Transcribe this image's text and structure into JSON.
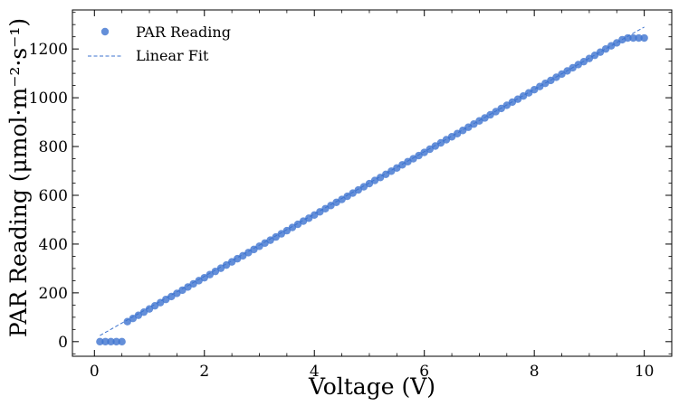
{
  "chart_data": {
    "type": "scatter",
    "xlabel": "Voltage (V)",
    "ylabel": "PAR Reading (μmol·m⁻²·s⁻¹)",
    "xlim": [
      -0.4,
      10.5
    ],
    "ylim": [
      -60,
      1360
    ],
    "x_ticks": [
      0,
      2,
      4,
      6,
      8,
      10
    ],
    "y_ticks": [
      0,
      200,
      400,
      600,
      800,
      1000,
      1200
    ],
    "grid": false,
    "legend_position": "top-left",
    "colors": {
      "points": "#3d73cf",
      "fit": "#3d73cf"
    },
    "series": [
      {
        "name": "PAR Reading",
        "kind": "scatter",
        "x": [
          0.1,
          0.2,
          0.3,
          0.4,
          0.5,
          0.6,
          0.7,
          0.8,
          0.9,
          1.0,
          1.1,
          1.2,
          1.3,
          1.4,
          1.5,
          1.6,
          1.7,
          1.8,
          1.9,
          2.0,
          2.1,
          2.2,
          2.3,
          2.4,
          2.5,
          2.6,
          2.7,
          2.8,
          2.9,
          3.0,
          3.1,
          3.2,
          3.3,
          3.4,
          3.5,
          3.6,
          3.7,
          3.8,
          3.9,
          4.0,
          4.1,
          4.2,
          4.3,
          4.4,
          4.5,
          4.6,
          4.7,
          4.8,
          4.9,
          5.0,
          5.1,
          5.2,
          5.3,
          5.4,
          5.5,
          5.6,
          5.7,
          5.8,
          5.9,
          6.0,
          6.1,
          6.2,
          6.3,
          6.4,
          6.5,
          6.6,
          6.7,
          6.8,
          6.9,
          7.0,
          7.1,
          7.2,
          7.3,
          7.4,
          7.5,
          7.6,
          7.7,
          7.8,
          7.9,
          8.0,
          8.1,
          8.2,
          8.3,
          8.4,
          8.5,
          8.6,
          8.7,
          8.8,
          8.9,
          9.0,
          9.1,
          9.2,
          9.3,
          9.4,
          9.5,
          9.6,
          9.7,
          9.8,
          9.9,
          10.0
        ],
        "y": [
          0,
          0,
          0,
          0,
          0,
          82,
          95,
          108,
          121,
          134,
          147,
          160,
          173,
          185,
          198,
          211,
          224,
          237,
          250,
          262,
          275,
          288,
          301,
          314,
          327,
          340,
          352,
          365,
          378,
          391,
          404,
          416,
          429,
          442,
          455,
          468,
          481,
          494,
          506,
          519,
          532,
          545,
          558,
          571,
          583,
          596,
          609,
          622,
          635,
          648,
          661,
          673,
          686,
          699,
          712,
          725,
          738,
          750,
          763,
          776,
          789,
          802,
          815,
          828,
          840,
          853,
          866,
          879,
          892,
          905,
          917,
          930,
          943,
          956,
          969,
          982,
          994,
          1007,
          1020,
          1033,
          1046,
          1059,
          1071,
          1084,
          1097,
          1110,
          1123,
          1136,
          1148,
          1161,
          1174,
          1187,
          1200,
          1213,
          1225,
          1238,
          1245,
          1245,
          1245,
          1245
        ]
      },
      {
        "name": "Linear Fit",
        "kind": "line",
        "style": "dashed",
        "x": [
          0.1,
          10.0
        ],
        "y": [
          25,
          1290
        ]
      }
    ]
  }
}
